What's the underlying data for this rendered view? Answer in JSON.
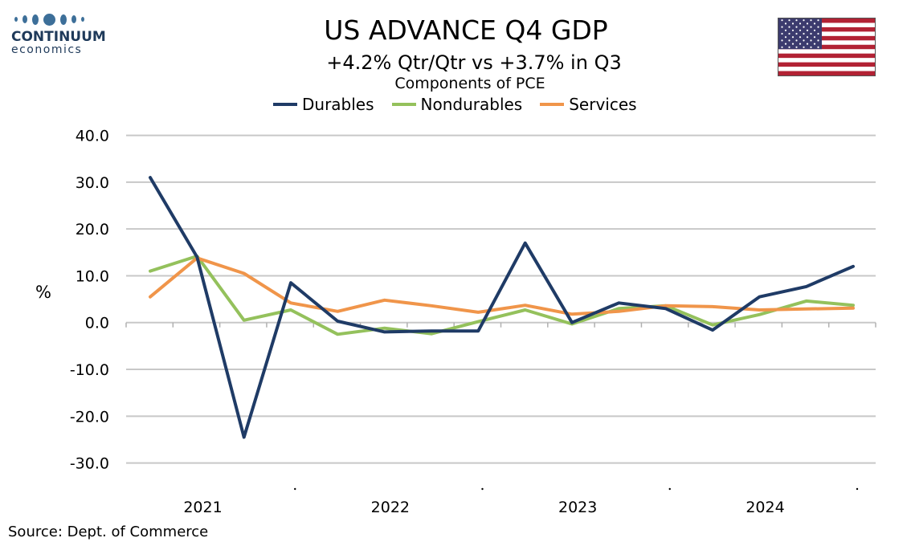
{
  "logo": {
    "name": "CONTINUUM",
    "sub": "economics"
  },
  "header": {
    "title": "US ADVANCE Q4  GDP",
    "subtitle": "+4.2% Qtr/Qtr vs +3.7% in Q3",
    "subtitle2": "Components of PCE"
  },
  "flag_icon": "us-flag-icon",
  "source": "Source: Dept. of Commerce",
  "colors": {
    "durables": "#1f3b66",
    "nondurables": "#94c15c",
    "services": "#f0954a",
    "grid": "#c8c8c8"
  },
  "chart_data": {
    "type": "line",
    "title": "",
    "xlabel": "",
    "ylabel": "%",
    "ylim": [
      -30,
      40
    ],
    "yticks": [
      "40.0",
      "30.0",
      "20.0",
      "10.0",
      "0.0",
      "-10.0",
      "-20.0",
      "-30.0"
    ],
    "year_labels": [
      "2021",
      "2022",
      "2023",
      "2024"
    ],
    "x": [
      "2021Q1",
      "2021Q2",
      "2021Q3",
      "2021Q4",
      "2022Q1",
      "2022Q2",
      "2022Q3",
      "2022Q4",
      "2023Q1",
      "2023Q2",
      "2023Q3",
      "2023Q4",
      "2024Q1",
      "2024Q2",
      "2024Q3",
      "2024Q4"
    ],
    "grid": true,
    "legend": "top",
    "series": [
      {
        "name": "Durables",
        "values": [
          31.0,
          14.0,
          -24.5,
          8.5,
          0.3,
          -2.0,
          -1.8,
          -1.8,
          17.0,
          0.0,
          4.2,
          3.0,
          -1.6,
          5.5,
          7.7,
          12.0
        ]
      },
      {
        "name": "Nondurables",
        "values": [
          11.0,
          14.2,
          0.5,
          2.7,
          -2.5,
          -1.2,
          -2.4,
          0.2,
          2.7,
          -0.3,
          3.0,
          3.6,
          -0.5,
          1.7,
          4.6,
          3.7
        ]
      },
      {
        "name": "Services",
        "values": [
          5.5,
          13.8,
          10.5,
          4.2,
          2.4,
          4.8,
          3.6,
          2.2,
          3.7,
          1.8,
          2.4,
          3.6,
          3.4,
          2.7,
          2.9,
          3.1
        ]
      }
    ]
  }
}
